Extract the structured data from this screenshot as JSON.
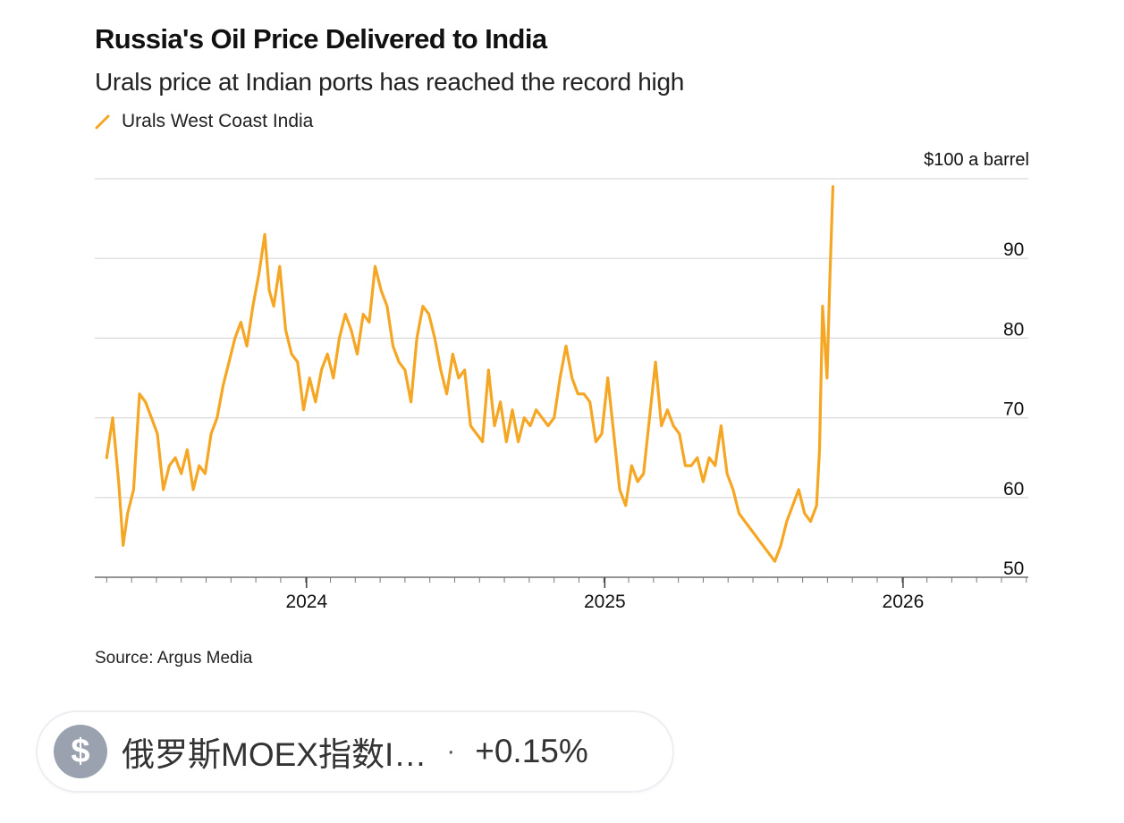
{
  "chart_data": {
    "type": "line",
    "title": "Russia's Oil Price Delivered to India",
    "subtitle": "Urals price at Indian ports has reached the record high",
    "series": [
      {
        "name": "Urals West Coast India",
        "color": "#f5a623",
        "points": [
          [
            2023.33,
            65
          ],
          [
            2023.35,
            70
          ],
          [
            2023.37,
            62
          ],
          [
            2023.385,
            54
          ],
          [
            2023.4,
            58
          ],
          [
            2023.42,
            61
          ],
          [
            2023.44,
            73
          ],
          [
            2023.46,
            72
          ],
          [
            2023.48,
            70
          ],
          [
            2023.5,
            68
          ],
          [
            2023.52,
            61
          ],
          [
            2023.54,
            64
          ],
          [
            2023.56,
            65
          ],
          [
            2023.58,
            63
          ],
          [
            2023.6,
            66
          ],
          [
            2023.62,
            61
          ],
          [
            2023.64,
            64
          ],
          [
            2023.66,
            63
          ],
          [
            2023.68,
            68
          ],
          [
            2023.7,
            70
          ],
          [
            2023.72,
            74
          ],
          [
            2023.74,
            77
          ],
          [
            2023.76,
            80
          ],
          [
            2023.78,
            82
          ],
          [
            2023.8,
            79
          ],
          [
            2023.82,
            84
          ],
          [
            2023.84,
            88
          ],
          [
            2023.86,
            93
          ],
          [
            2023.875,
            86
          ],
          [
            2023.89,
            84
          ],
          [
            2023.91,
            89
          ],
          [
            2023.93,
            81
          ],
          [
            2023.95,
            78
          ],
          [
            2023.97,
            77
          ],
          [
            2023.99,
            71
          ],
          [
            2024.01,
            75
          ],
          [
            2024.03,
            72
          ],
          [
            2024.05,
            76
          ],
          [
            2024.07,
            78
          ],
          [
            2024.09,
            75
          ],
          [
            2024.11,
            80
          ],
          [
            2024.13,
            83
          ],
          [
            2024.15,
            81
          ],
          [
            2024.17,
            78
          ],
          [
            2024.19,
            83
          ],
          [
            2024.21,
            82
          ],
          [
            2024.23,
            89
          ],
          [
            2024.25,
            86
          ],
          [
            2024.27,
            84
          ],
          [
            2024.29,
            79
          ],
          [
            2024.31,
            77
          ],
          [
            2024.33,
            76
          ],
          [
            2024.35,
            72
          ],
          [
            2024.37,
            80
          ],
          [
            2024.39,
            84
          ],
          [
            2024.41,
            83
          ],
          [
            2024.43,
            80
          ],
          [
            2024.45,
            76
          ],
          [
            2024.47,
            73
          ],
          [
            2024.49,
            78
          ],
          [
            2024.51,
            75
          ],
          [
            2024.53,
            76
          ],
          [
            2024.55,
            69
          ],
          [
            2024.57,
            68
          ],
          [
            2024.59,
            67
          ],
          [
            2024.61,
            76
          ],
          [
            2024.63,
            69
          ],
          [
            2024.65,
            72
          ],
          [
            2024.67,
            67
          ],
          [
            2024.69,
            71
          ],
          [
            2024.71,
            67
          ],
          [
            2024.73,
            70
          ],
          [
            2024.75,
            69
          ],
          [
            2024.77,
            71
          ],
          [
            2024.79,
            70
          ],
          [
            2024.81,
            69
          ],
          [
            2024.83,
            70
          ],
          [
            2024.85,
            75
          ],
          [
            2024.87,
            79
          ],
          [
            2024.89,
            75
          ],
          [
            2024.91,
            73
          ],
          [
            2024.93,
            73
          ],
          [
            2024.95,
            72
          ],
          [
            2024.97,
            67
          ],
          [
            2024.99,
            68
          ],
          [
            2025.01,
            75
          ],
          [
            2025.03,
            68
          ],
          [
            2025.05,
            61
          ],
          [
            2025.07,
            59
          ],
          [
            2025.09,
            64
          ],
          [
            2025.11,
            62
          ],
          [
            2025.13,
            63
          ],
          [
            2025.15,
            70
          ],
          [
            2025.17,
            77
          ],
          [
            2025.19,
            69
          ],
          [
            2025.21,
            71
          ],
          [
            2025.23,
            69
          ],
          [
            2025.25,
            68
          ],
          [
            2025.27,
            64
          ],
          [
            2025.29,
            64
          ],
          [
            2025.31,
            65
          ],
          [
            2025.33,
            62
          ],
          [
            2025.35,
            65
          ],
          [
            2025.37,
            64
          ],
          [
            2025.39,
            69
          ],
          [
            2025.41,
            63
          ],
          [
            2025.43,
            61
          ],
          [
            2025.45,
            58
          ],
          [
            2025.47,
            57
          ],
          [
            2025.49,
            56
          ],
          [
            2025.51,
            55
          ],
          [
            2025.53,
            54
          ],
          [
            2025.55,
            53
          ],
          [
            2025.57,
            52
          ],
          [
            2025.59,
            54
          ],
          [
            2025.61,
            57
          ],
          [
            2025.63,
            59
          ],
          [
            2025.65,
            61
          ],
          [
            2025.67,
            58
          ],
          [
            2025.69,
            57
          ],
          [
            2025.71,
            59
          ],
          [
            2025.72,
            66
          ],
          [
            2025.73,
            84
          ],
          [
            2025.745,
            75
          ],
          [
            2025.755,
            88
          ],
          [
            2025.765,
            99
          ]
        ]
      }
    ],
    "legend": [
      "Urals West Coast India"
    ],
    "legend_position": "top-left",
    "x_tick_labels": [
      "2024",
      "2025",
      "2026"
    ],
    "y_tick_labels": [
      "50",
      "60",
      "70",
      "80",
      "90"
    ],
    "ylim": [
      50,
      100
    ],
    "unit_label": "$100 a barrel",
    "y_axis_side": "right",
    "grid": true
  },
  "source": "Source: Argus Media",
  "ticker": {
    "icon": "dollar-icon",
    "icon_glyph": "$",
    "name": "俄罗斯MOEX指数I…",
    "separator": "·",
    "change": "+0.15%",
    "icon_color": "#9aa2af"
  }
}
